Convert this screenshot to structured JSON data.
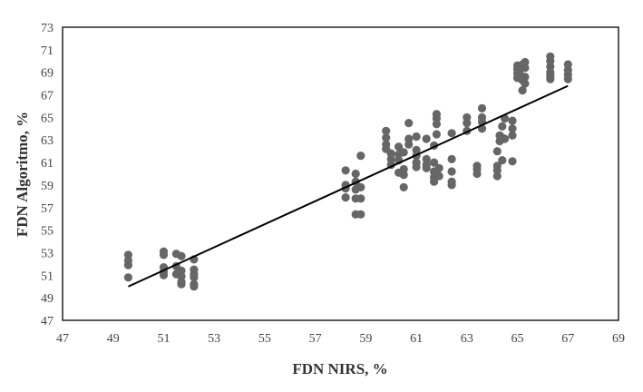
{
  "chart_data": {
    "type": "scatter",
    "xlabel": "FDN NIRS, %",
    "ylabel": "FDN Algoritmo,  %",
    "xlim": [
      47,
      69
    ],
    "ylim": [
      47,
      73
    ],
    "xticks": [
      47,
      49,
      51,
      53,
      55,
      57,
      59,
      61,
      63,
      65,
      67,
      69
    ],
    "yticks": [
      47,
      49,
      51,
      53,
      55,
      57,
      59,
      61,
      63,
      65,
      67,
      69,
      71,
      73
    ],
    "grid": false,
    "legend": "none",
    "marker_color": "#666666",
    "trendline": {
      "x": [
        49.6,
        67.0
      ],
      "y": [
        50.0,
        67.8
      ],
      "color": "#000000"
    },
    "points": [
      {
        "x": 49.6,
        "y": 52.8
      },
      {
        "x": 49.6,
        "y": 52.3
      },
      {
        "x": 49.6,
        "y": 51.9
      },
      {
        "x": 49.6,
        "y": 50.8
      },
      {
        "x": 51.0,
        "y": 53.1
      },
      {
        "x": 51.0,
        "y": 52.8
      },
      {
        "x": 51.0,
        "y": 51.7
      },
      {
        "x": 51.0,
        "y": 51.3
      },
      {
        "x": 51.0,
        "y": 51.0
      },
      {
        "x": 51.5,
        "y": 52.9
      },
      {
        "x": 51.5,
        "y": 51.8
      },
      {
        "x": 51.5,
        "y": 51.1
      },
      {
        "x": 51.7,
        "y": 52.7
      },
      {
        "x": 51.7,
        "y": 51.4
      },
      {
        "x": 51.7,
        "y": 50.9
      },
      {
        "x": 51.7,
        "y": 50.4
      },
      {
        "x": 51.7,
        "y": 50.2
      },
      {
        "x": 52.2,
        "y": 52.4
      },
      {
        "x": 52.2,
        "y": 51.5
      },
      {
        "x": 52.2,
        "y": 51.1
      },
      {
        "x": 52.2,
        "y": 50.8
      },
      {
        "x": 52.2,
        "y": 50.2
      },
      {
        "x": 52.2,
        "y": 50.0
      },
      {
        "x": 58.2,
        "y": 60.3
      },
      {
        "x": 58.2,
        "y": 59.0
      },
      {
        "x": 58.2,
        "y": 58.7
      },
      {
        "x": 58.2,
        "y": 57.9
      },
      {
        "x": 58.6,
        "y": 60.0
      },
      {
        "x": 58.6,
        "y": 59.3
      },
      {
        "x": 58.6,
        "y": 58.6
      },
      {
        "x": 58.6,
        "y": 57.8
      },
      {
        "x": 58.6,
        "y": 56.4
      },
      {
        "x": 58.8,
        "y": 61.6
      },
      {
        "x": 58.8,
        "y": 58.8
      },
      {
        "x": 58.8,
        "y": 57.8
      },
      {
        "x": 58.8,
        "y": 56.4
      },
      {
        "x": 59.8,
        "y": 63.8
      },
      {
        "x": 59.8,
        "y": 63.2
      },
      {
        "x": 59.8,
        "y": 62.6
      },
      {
        "x": 59.8,
        "y": 62.2
      },
      {
        "x": 60.0,
        "y": 61.8
      },
      {
        "x": 60.0,
        "y": 61.3
      },
      {
        "x": 60.0,
        "y": 60.8
      },
      {
        "x": 60.3,
        "y": 62.4
      },
      {
        "x": 60.3,
        "y": 61.7
      },
      {
        "x": 60.3,
        "y": 61.2
      },
      {
        "x": 60.3,
        "y": 60.1
      },
      {
        "x": 60.5,
        "y": 61.9
      },
      {
        "x": 60.5,
        "y": 60.4
      },
      {
        "x": 60.5,
        "y": 59.9
      },
      {
        "x": 60.5,
        "y": 58.8
      },
      {
        "x": 60.7,
        "y": 64.5
      },
      {
        "x": 60.7,
        "y": 63.1
      },
      {
        "x": 60.7,
        "y": 62.6
      },
      {
        "x": 61.0,
        "y": 63.3
      },
      {
        "x": 61.0,
        "y": 62.1
      },
      {
        "x": 61.0,
        "y": 61.6
      },
      {
        "x": 61.0,
        "y": 61.0
      },
      {
        "x": 61.0,
        "y": 60.6
      },
      {
        "x": 61.4,
        "y": 63.1
      },
      {
        "x": 61.4,
        "y": 61.3
      },
      {
        "x": 61.4,
        "y": 60.8
      },
      {
        "x": 61.4,
        "y": 60.5
      },
      {
        "x": 61.7,
        "y": 62.5
      },
      {
        "x": 61.7,
        "y": 61.0
      },
      {
        "x": 61.7,
        "y": 60.2
      },
      {
        "x": 61.7,
        "y": 59.7
      },
      {
        "x": 61.7,
        "y": 59.3
      },
      {
        "x": 61.8,
        "y": 65.3
      },
      {
        "x": 61.8,
        "y": 64.9
      },
      {
        "x": 61.8,
        "y": 64.4
      },
      {
        "x": 61.8,
        "y": 63.5
      },
      {
        "x": 61.9,
        "y": 60.5
      },
      {
        "x": 61.9,
        "y": 59.8
      },
      {
        "x": 62.4,
        "y": 63.6
      },
      {
        "x": 62.4,
        "y": 61.3
      },
      {
        "x": 62.4,
        "y": 60.2
      },
      {
        "x": 62.4,
        "y": 59.3
      },
      {
        "x": 62.4,
        "y": 59.0
      },
      {
        "x": 63.0,
        "y": 65.0
      },
      {
        "x": 63.0,
        "y": 64.5
      },
      {
        "x": 63.0,
        "y": 63.8
      },
      {
        "x": 63.4,
        "y": 60.7
      },
      {
        "x": 63.4,
        "y": 60.4
      },
      {
        "x": 63.4,
        "y": 60.0
      },
      {
        "x": 63.6,
        "y": 65.8
      },
      {
        "x": 63.6,
        "y": 65.0
      },
      {
        "x": 63.6,
        "y": 64.6
      },
      {
        "x": 63.6,
        "y": 64.0
      },
      {
        "x": 64.2,
        "y": 62.0
      },
      {
        "x": 64.2,
        "y": 60.7
      },
      {
        "x": 64.2,
        "y": 60.3
      },
      {
        "x": 64.2,
        "y": 59.8
      },
      {
        "x": 64.3,
        "y": 63.4
      },
      {
        "x": 64.3,
        "y": 62.9
      },
      {
        "x": 64.4,
        "y": 64.2
      },
      {
        "x": 64.4,
        "y": 63.2
      },
      {
        "x": 64.4,
        "y": 61.2
      },
      {
        "x": 64.5,
        "y": 64.9
      },
      {
        "x": 64.5,
        "y": 63.1
      },
      {
        "x": 64.8,
        "y": 64.7
      },
      {
        "x": 64.8,
        "y": 64.0
      },
      {
        "x": 64.8,
        "y": 63.4
      },
      {
        "x": 64.8,
        "y": 61.1
      },
      {
        "x": 65.0,
        "y": 69.6
      },
      {
        "x": 65.0,
        "y": 69.3
      },
      {
        "x": 65.0,
        "y": 68.9
      },
      {
        "x": 65.0,
        "y": 68.5
      },
      {
        "x": 65.1,
        "y": 69.2
      },
      {
        "x": 65.1,
        "y": 68.8
      },
      {
        "x": 65.2,
        "y": 69.7
      },
      {
        "x": 65.2,
        "y": 68.3
      },
      {
        "x": 65.2,
        "y": 67.4
      },
      {
        "x": 65.3,
        "y": 69.9
      },
      {
        "x": 65.3,
        "y": 69.4
      },
      {
        "x": 65.3,
        "y": 68.6
      },
      {
        "x": 65.3,
        "y": 68.0
      },
      {
        "x": 66.3,
        "y": 70.4
      },
      {
        "x": 66.3,
        "y": 70.0
      },
      {
        "x": 66.3,
        "y": 69.5
      },
      {
        "x": 66.3,
        "y": 69.0
      },
      {
        "x": 66.3,
        "y": 68.7
      },
      {
        "x": 66.3,
        "y": 68.4
      },
      {
        "x": 67.0,
        "y": 69.7
      },
      {
        "x": 67.0,
        "y": 69.2
      },
      {
        "x": 67.0,
        "y": 68.8
      },
      {
        "x": 67.0,
        "y": 68.4
      }
    ]
  }
}
